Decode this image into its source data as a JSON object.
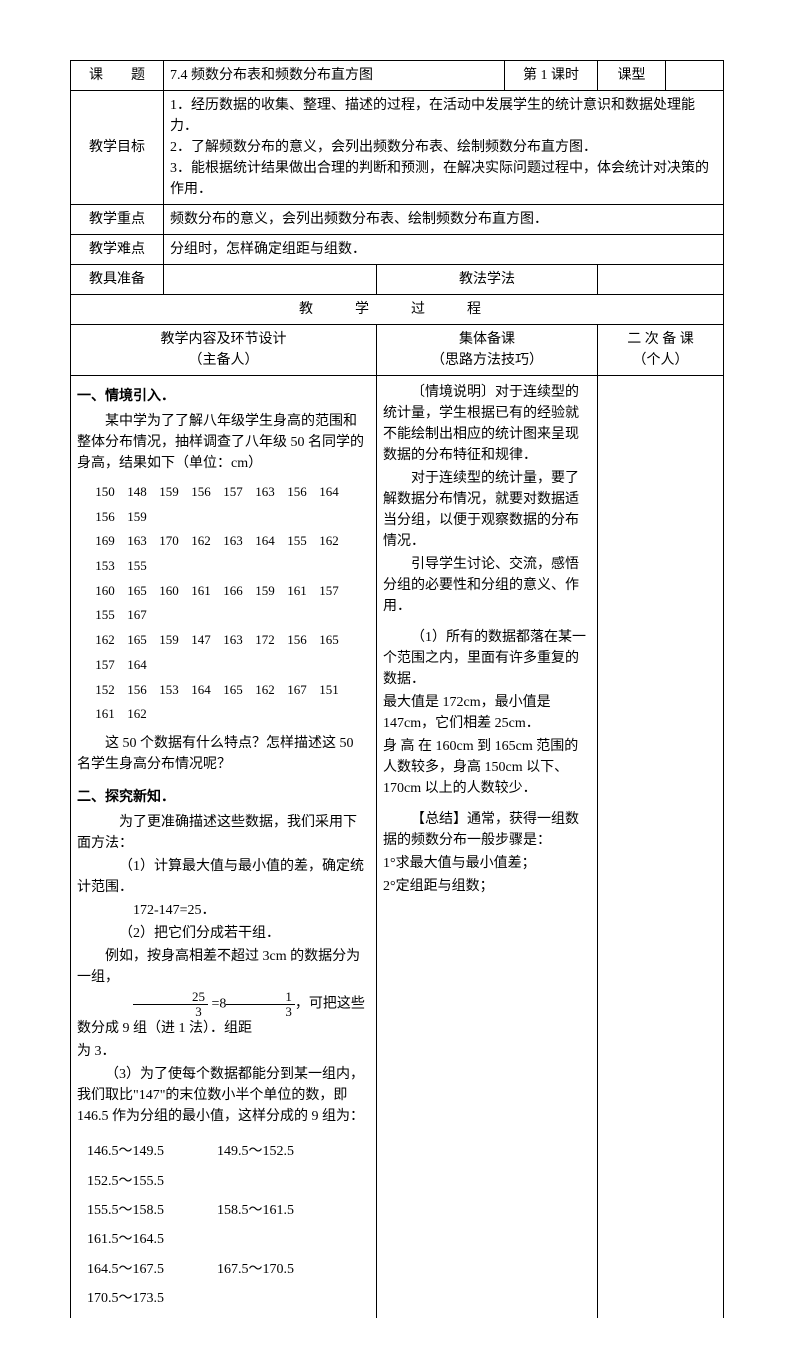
{
  "header": {
    "lesson_label": "课　　题",
    "lesson_title": "7.4 频数分布表和频数分布直方图",
    "period": "第 1 课时",
    "type_label": "课型",
    "type_value": ""
  },
  "rows": {
    "objective_label": "教学目标",
    "objective_text": "1．经历数据的收集、整理、描述的过程，在活动中发展学生的统计意识和数据处理能力．\n2．了解频数分布的意义，会列出频数分布表、绘制频数分布直方图．\n3．能根据统计结果做出合理的判断和预测，在解决实际问题过程中，体会统计对决策的作用．",
    "keypoint_label": "教学重点",
    "keypoint_text": "频数分布的意义，会列出频数分布表、绘制频数分布直方图．",
    "difficulty_label": "教学难点",
    "difficulty_text": "分组时，怎样确定组距与组数．",
    "prep_label": "教具准备",
    "prep_text": "",
    "method_label": "教法学法",
    "method_text": ""
  },
  "process_title": "教　学　过　程",
  "columns": {
    "col1_l1": "教学内容及环节设计",
    "col1_l2": "（主备人）",
    "col2_l1": "集体备课",
    "col2_l2": "（思路方法技巧）",
    "col3_l1": "二 次 备 课",
    "col3_l2": "（个人）"
  },
  "left": {
    "s1_title": "一、情境引入．",
    "s1_p1": "某中学为了了解八年级学生身高的范围和整体分布情况，抽样调查了八年级 50 名同学的身高，结果如下（单位：cm）",
    "data_rows": [
      [
        "150",
        "148",
        "159",
        "156",
        "157",
        "163",
        "156",
        "164",
        "156",
        "159"
      ],
      [
        "169",
        "163",
        "170",
        "162",
        "163",
        "164",
        "155",
        "162",
        "153",
        "155"
      ],
      [
        "160",
        "165",
        "160",
        "161",
        "166",
        "159",
        "161",
        "157",
        "155",
        "167"
      ],
      [
        "162",
        "165",
        "159",
        "147",
        "163",
        "172",
        "156",
        "165",
        "157",
        "164"
      ],
      [
        "152",
        "156",
        "153",
        "164",
        "165",
        "162",
        "167",
        "151",
        "161",
        "162"
      ]
    ],
    "s1_q": "这 50 个数据有什么特点？怎样描述这 50 名学生身高分布情况呢？",
    "s2_title": "二、探究新知．",
    "s2_p1": "为了更准确描述这些数据，我们采用下面方法：",
    "s2_p2": "（1）计算最大值与最小值的差，确定统计范围．",
    "s2_p2b": "172-147=25．",
    "s2_p3": "（2）把它们分成若干组．",
    "s2_p4": "例如，按身高相差不超过 3cm 的数据分为一组，",
    "s2_frac_left_num": "25",
    "s2_frac_left_den": "3",
    "s2_eq": "=8",
    "s2_frac_right_num": "1",
    "s2_frac_right_den": "3",
    "s2_p5_tail": "，可把这些数分成 9 组（进 1 法）．组距",
    "s2_p5_end": "为 3．",
    "s2_p6": "（3）为了使每个数据都能分到某一组内，我们取比\"147\"的末位数小半个单位的数，即 146.5 作为分组的最小值，这样分成的 9 组为：",
    "ranges": [
      [
        "146.5～149.5",
        "149.5～152.5",
        "152.5～155.5"
      ],
      [
        "155.5～158.5",
        "158.5～161.5",
        "161.5～164.5"
      ],
      [
        "164.5～167.5",
        "167.5～170.5",
        "170.5～173.5"
      ]
    ]
  },
  "mid": {
    "p1": "〔情境说明〕对于连续型的统计量，学生根据已有的经验就不能绘制出相应的统计图来呈现数据的分布特征和规律．",
    "p2": "对于连续型的统计量，要了解数据分布情况，就要对数据适当分组，以便于观察数据的分布情况．",
    "p3": "引导学生讨论、交流，感悟分组的必要性和分组的意义、作用．",
    "p4": "（1）所有的数据都落在某一个范围之内，里面有许多重复的数据．",
    "p5": "最大值是 172cm，最小值是 147cm，它们相差 25cm．",
    "p6": "身 高 在 160cm 到 165cm 范围的人数较多，身高 150cm 以下、170cm 以上的人数较少．",
    "p7": "【总结】通常，获得一组数据的频数分布一般步骤是：",
    "p8": "1°求最大值与最小值差；",
    "p9": "2°定组距与组数；"
  }
}
